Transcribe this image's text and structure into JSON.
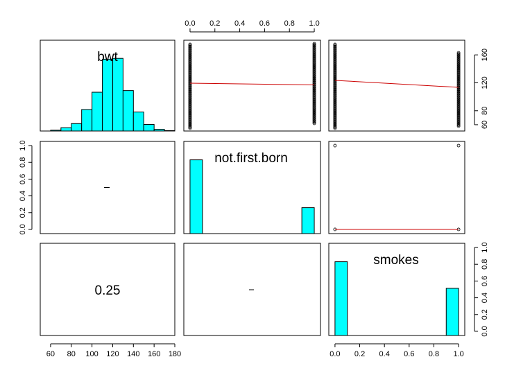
{
  "chart_data": {
    "type": "scatter",
    "variables": [
      "bwt",
      "not.first.born",
      "smokes"
    ],
    "colors": {
      "hist_fill": "#00ffff",
      "hist_stroke": "#000000",
      "smooth_line": "#cc0000",
      "points": "#000000"
    },
    "bwt_hist": {
      "breaks": [
        50,
        60,
        70,
        80,
        90,
        100,
        110,
        120,
        130,
        140,
        150,
        160,
        170,
        180
      ],
      "relative_heights": [
        0.0,
        0.01,
        0.04,
        0.09,
        0.26,
        0.47,
        0.87,
        0.88,
        0.49,
        0.23,
        0.08,
        0.02,
        0.005
      ]
    },
    "not_first_born_hist": {
      "breaks": [
        0,
        0.1,
        0.2,
        0.3,
        0.4,
        0.5,
        0.6,
        0.7,
        0.8,
        0.9,
        1.0
      ],
      "relative_heights": [
        0.74,
        0,
        0,
        0,
        0,
        0,
        0,
        0,
        0,
        0.26
      ]
    },
    "smokes_hist": {
      "breaks": [
        0,
        0.1,
        0.2,
        0.3,
        0.4,
        0.5,
        0.6,
        0.7,
        0.8,
        0.9,
        1.0
      ],
      "relative_heights": [
        0.61,
        0,
        0,
        0,
        0,
        0,
        0,
        0,
        0,
        0.39
      ]
    },
    "scatter_nfb_bwt": {
      "x_values": [
        0,
        1
      ],
      "bwt_range_x0": [
        55,
        176
      ],
      "bwt_range_x1": [
        62,
        176
      ],
      "smooth": [
        [
          0,
          119.5
        ],
        [
          1,
          117
        ]
      ]
    },
    "scatter_smokes_bwt": {
      "x_values": [
        0,
        1
      ],
      "bwt_range_x0": [
        55,
        176
      ],
      "bwt_range_x1": [
        58,
        163
      ],
      "smooth": [
        [
          0,
          123.5
        ],
        [
          1,
          113.5
        ]
      ]
    },
    "scatter_smokes_nfb": {
      "points": [
        [
          0,
          0
        ],
        [
          0,
          1
        ],
        [
          1,
          0
        ],
        [
          1,
          1
        ]
      ],
      "smooth": [
        [
          0,
          0
        ],
        [
          1,
          0
        ]
      ]
    },
    "correlation": {
      "value": "0.25"
    },
    "axes": {
      "bwt": {
        "lim": [
          50,
          180
        ],
        "ticks": [
          "60",
          "80",
          "100",
          "120",
          "140",
          "160",
          "180"
        ]
      },
      "binary_bottom": {
        "lim": [
          -0.05,
          1.05
        ],
        "ticks": [
          "0.0",
          "0.2",
          "0.4",
          "0.6",
          "0.8",
          "1.0"
        ]
      },
      "binary_top": {
        "lim": [
          -0.05,
          1.05
        ],
        "ticks": [
          "0.0",
          "0.2",
          "0.4",
          "0.6",
          "0.8",
          "1.0"
        ]
      },
      "bwt_right": {
        "lim": [
          51,
          181
        ],
        "ticks": [
          "60",
          "80",
          "120",
          "160"
        ]
      },
      "left_binary": {
        "lim": [
          -0.05,
          1.05
        ],
        "ticks": [
          "0.0",
          "0.2",
          "0.4",
          "0.6",
          "0.8",
          "1.0"
        ]
      },
      "right_binary": {
        "lim": [
          -0.05,
          1.05
        ],
        "ticks": [
          "0.0",
          "0.2",
          "0.4",
          "0.6",
          "0.8",
          "1.0"
        ]
      }
    },
    "grid": false
  }
}
